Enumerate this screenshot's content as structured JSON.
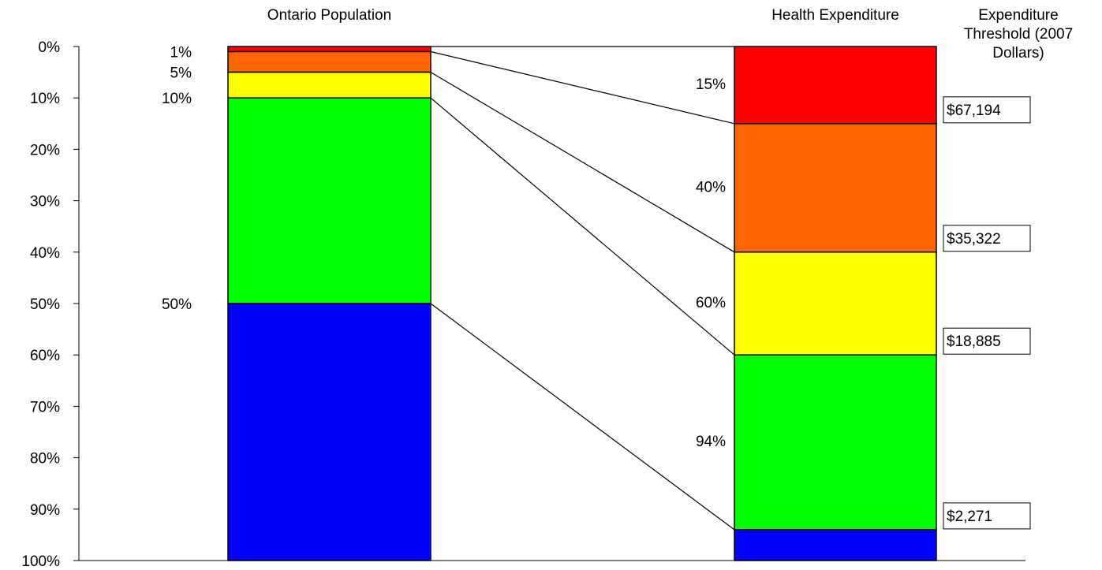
{
  "chart_data": {
    "type": "stacked-bar",
    "categories": [
      "Ontario Population",
      "Health Expenditure"
    ],
    "series": [
      {
        "color": "#ff0000",
        "values": [
          1,
          15
        ]
      },
      {
        "color": "#ff6600",
        "values": [
          4,
          25
        ]
      },
      {
        "color": "#ffff00",
        "values": [
          5,
          20
        ]
      },
      {
        "color": "#00ff00",
        "values": [
          40,
          34
        ]
      },
      {
        "color": "#0000ff",
        "values": [
          50,
          6
        ]
      }
    ],
    "ylim": [
      0,
      100
    ],
    "y_inverted": true,
    "yticks": [
      {
        "value": 0,
        "label": "0%"
      },
      {
        "value": 10,
        "label": "10%"
      },
      {
        "value": 20,
        "label": "20%"
      },
      {
        "value": 30,
        "label": "30%"
      },
      {
        "value": 40,
        "label": "40%"
      },
      {
        "value": 50,
        "label": "50%"
      },
      {
        "value": 60,
        "label": "60%"
      },
      {
        "value": 70,
        "label": "70%"
      },
      {
        "value": 80,
        "label": "80%"
      },
      {
        "value": 90,
        "label": "90%"
      },
      {
        "value": 100,
        "label": "100%"
      }
    ],
    "population_labels": [
      {
        "value": 1,
        "label": "1%"
      },
      {
        "value": 5,
        "label": "5%"
      },
      {
        "value": 10,
        "label": "10%"
      },
      {
        "value": 50,
        "label": "50%"
      }
    ],
    "expenditure_labels": [
      {
        "value": 15,
        "label": "15%"
      },
      {
        "value": 40,
        "label": "40%"
      },
      {
        "value": 60,
        "label": "60%"
      },
      {
        "value": 94,
        "label": "94%"
      }
    ],
    "threshold_title": "Expenditure Threshold (2007 Dollars)",
    "thresholds": [
      {
        "at": 15,
        "value": 67194,
        "label": "$67,194"
      },
      {
        "at": 40,
        "value": 35322,
        "label": "$35,322"
      },
      {
        "at": 60,
        "value": 18885,
        "label": "$18,885"
      },
      {
        "at": 94,
        "value": 2271,
        "label": "$2,271"
      }
    ]
  }
}
